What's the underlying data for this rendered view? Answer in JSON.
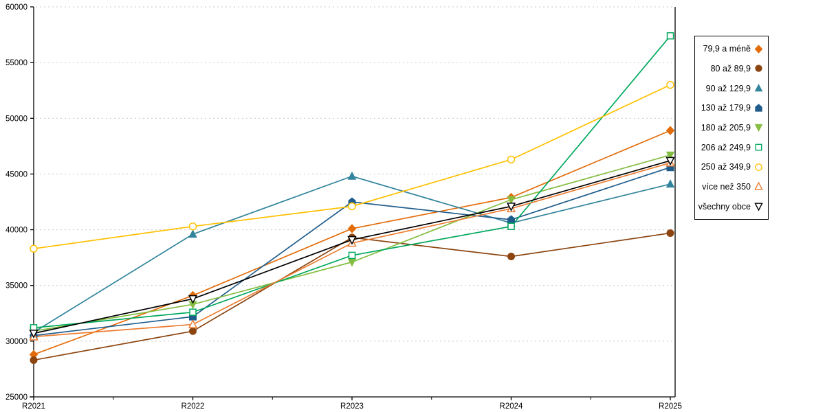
{
  "chart_data": {
    "type": "line",
    "title": "",
    "xlabel": "",
    "ylabel": "",
    "categories": [
      "R2021",
      "R2022",
      "R2023",
      "R2024",
      "R2025"
    ],
    "ylim": [
      25000,
      60000
    ],
    "ytick_step": 5000,
    "ytick_labels": [
      "25000",
      "30000",
      "35000",
      "40000",
      "45000",
      "50000",
      "55000",
      "60000"
    ],
    "grid": "horizontal-dotted",
    "grid_color": "#c6c6c6",
    "axis_color": "#000000",
    "legend_position": "right",
    "series": [
      {
        "name": "79,9 a méně",
        "color": "#e36c0a",
        "marker": "diamond",
        "filled": true,
        "values": [
          28800,
          34100,
          40100,
          42900,
          48900
        ]
      },
      {
        "name": "80 až 89,9",
        "color": "#8c4510",
        "marker": "circle",
        "filled": true,
        "values": [
          28300,
          30900,
          39300,
          37600,
          39700
        ]
      },
      {
        "name": "90 až 129,9",
        "color": "#31849b",
        "marker": "triangle-up",
        "filled": true,
        "values": [
          30800,
          39600,
          44800,
          40600,
          44100
        ]
      },
      {
        "name": "130 až 179,9",
        "color": "#1f5c8b",
        "marker": "pentagon",
        "filled": true,
        "values": [
          30500,
          32200,
          42500,
          40900,
          45600
        ]
      },
      {
        "name": "180 až 205,9",
        "color": "#84bd41",
        "marker": "triangle-down",
        "filled": true,
        "values": [
          30900,
          33300,
          37100,
          42700,
          46700
        ]
      },
      {
        "name": "206 až 249,9",
        "color": "#00a85d",
        "marker": "square",
        "filled": false,
        "values": [
          31200,
          32600,
          37700,
          40300,
          57400
        ]
      },
      {
        "name": "250 až 349,9",
        "color": "#ffc000",
        "marker": "circle",
        "filled": false,
        "values": [
          38300,
          40300,
          42100,
          46300,
          53000
        ]
      },
      {
        "name": "více než 350",
        "color": "#ed7d31",
        "marker": "triangle-up",
        "filled": false,
        "values": [
          30400,
          31500,
          38800,
          41900,
          46000
        ]
      },
      {
        "name": "všechny obce",
        "color": "#000000",
        "marker": "triangle-down",
        "filled": false,
        "values": [
          30700,
          33800,
          39100,
          42100,
          46200
        ]
      }
    ]
  }
}
